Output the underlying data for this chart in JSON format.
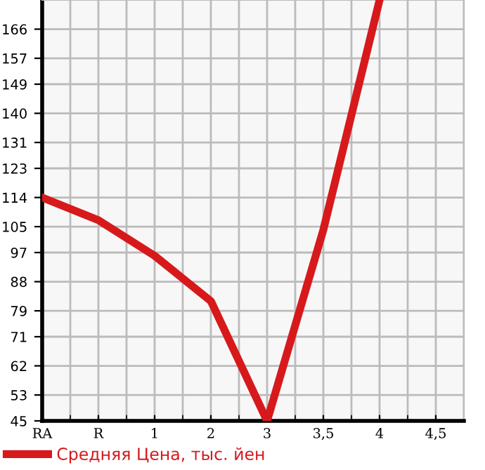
{
  "chart_data": {
    "type": "line",
    "categories": [
      "RA",
      "R",
      "1",
      "2",
      "3",
      "3,5",
      "4",
      "4,5"
    ],
    "series": [
      {
        "name": "Средняя Цена, тыс. йен",
        "color": "#d7191c",
        "values": [
          114,
          107,
          96,
          82,
          45,
          104,
          175,
          null
        ]
      }
    ],
    "ylim": [
      45,
      175
    ],
    "yticks": [
      45,
      53,
      62,
      71,
      79,
      88,
      97,
      105,
      114,
      123,
      131,
      140,
      149,
      157,
      166
    ],
    "grid": true,
    "legend": "bottom",
    "marker": "none",
    "line_style": "solid"
  }
}
